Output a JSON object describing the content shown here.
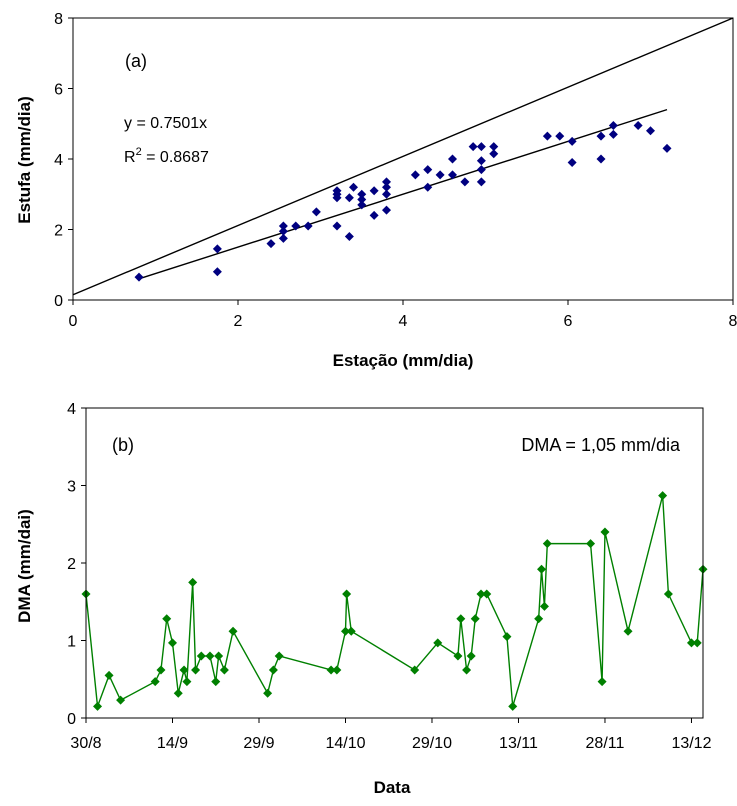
{
  "chart_data": [
    {
      "type": "scatter",
      "panel_label": "(a)",
      "xlabel": "Estação (mm/dia)",
      "ylabel": "Estufa (mm/dia)",
      "xlim": [
        0,
        8
      ],
      "ylim": [
        0,
        8
      ],
      "xticks": [
        "0",
        "2",
        "4",
        "6",
        "8"
      ],
      "yticks": [
        "0",
        "2",
        "4",
        "6",
        "8"
      ],
      "grid": false,
      "marker_color": "#000080",
      "equation": "y = 0.7501x",
      "r2_prefix": "R",
      "r2_sup": "2",
      "r2_value": " = 0.8687",
      "trendline": {
        "slope": 0.7501,
        "x_range": [
          0.8,
          7.2
        ]
      },
      "reference_line": {
        "from": [
          0,
          0.15
        ],
        "to": [
          8,
          8
        ]
      },
      "points": [
        [
          0.8,
          0.65
        ],
        [
          1.75,
          1.45
        ],
        [
          1.75,
          0.8
        ],
        [
          2.4,
          1.6
        ],
        [
          2.55,
          1.75
        ],
        [
          2.55,
          1.95
        ],
        [
          2.55,
          2.1
        ],
        [
          2.7,
          2.1
        ],
        [
          2.85,
          2.1
        ],
        [
          2.95,
          2.5
        ],
        [
          3.2,
          2.1
        ],
        [
          3.2,
          2.9
        ],
        [
          3.2,
          3.0
        ],
        [
          3.2,
          3.1
        ],
        [
          3.35,
          1.8
        ],
        [
          3.35,
          2.9
        ],
        [
          3.4,
          3.2
        ],
        [
          3.5,
          2.7
        ],
        [
          3.5,
          2.85
        ],
        [
          3.5,
          3.0
        ],
        [
          3.65,
          2.4
        ],
        [
          3.65,
          3.1
        ],
        [
          3.8,
          2.55
        ],
        [
          3.8,
          3.0
        ],
        [
          3.8,
          3.2
        ],
        [
          3.8,
          3.35
        ],
        [
          4.15,
          3.55
        ],
        [
          4.3,
          3.2
        ],
        [
          4.3,
          3.7
        ],
        [
          4.45,
          3.55
        ],
        [
          4.6,
          3.55
        ],
        [
          4.6,
          4.0
        ],
        [
          4.75,
          3.35
        ],
        [
          4.85,
          4.35
        ],
        [
          4.95,
          3.35
        ],
        [
          4.95,
          3.7
        ],
        [
          4.95,
          3.95
        ],
        [
          4.95,
          4.35
        ],
        [
          5.1,
          4.15
        ],
        [
          5.1,
          4.35
        ],
        [
          5.75,
          4.65
        ],
        [
          5.9,
          4.65
        ],
        [
          6.05,
          3.9
        ],
        [
          6.05,
          4.5
        ],
        [
          6.4,
          4.0
        ],
        [
          6.4,
          4.65
        ],
        [
          6.55,
          4.7
        ],
        [
          6.55,
          4.95
        ],
        [
          6.85,
          4.95
        ],
        [
          7.0,
          4.8
        ],
        [
          7.2,
          4.3
        ]
      ]
    },
    {
      "type": "line",
      "panel_label": "(b)",
      "annotation": "DMA = 1,05 mm/dia",
      "xlabel": "Data",
      "ylabel": "DMA (mm/dai)",
      "ylim": [
        0,
        4
      ],
      "yticks": [
        "0",
        "1",
        "2",
        "3",
        "4"
      ],
      "x_tick_labels": [
        "30/8",
        "14/9",
        "29/9",
        "14/10",
        "29/10",
        "13/11",
        "28/11",
        "13/12"
      ],
      "x_tick_days": [
        0,
        15,
        30,
        45,
        60,
        75,
        90,
        105
      ],
      "x_range_days": [
        0,
        107
      ],
      "grid": false,
      "line_color": "#008000",
      "marker_color": "#008000",
      "series": [
        {
          "x_days": [
            0,
            2,
            4,
            6,
            12,
            13,
            14,
            15,
            16,
            17,
            17.5,
            18.5,
            19,
            20,
            21.5,
            22.5,
            23,
            24,
            25.5,
            31.5,
            32.5,
            33.5,
            42.5,
            43.5,
            45,
            45.2,
            46,
            57,
            61,
            64.5,
            65,
            66,
            66.8,
            67.5,
            68.5,
            69.5,
            73,
            74,
            78.5,
            79,
            79.5,
            80,
            87.5,
            89.5,
            90,
            94,
            100,
            101,
            105,
            106,
            107
          ],
          "values": [
            1.6,
            0.15,
            0.55,
            0.23,
            0.47,
            0.62,
            1.28,
            0.97,
            0.32,
            0.62,
            0.47,
            1.75,
            0.62,
            0.8,
            0.8,
            0.47,
            0.8,
            0.62,
            1.12,
            0.32,
            0.62,
            0.8,
            0.62,
            0.62,
            1.12,
            1.6,
            1.12,
            0.62,
            0.97,
            0.8,
            1.28,
            0.62,
            0.8,
            1.28,
            1.6,
            1.6,
            1.05,
            0.15,
            1.28,
            1.92,
            1.44,
            2.25,
            2.25,
            0.47,
            2.4,
            1.12,
            2.87,
            1.6,
            0.97,
            0.97,
            1.92
          ]
        }
      ]
    }
  ]
}
